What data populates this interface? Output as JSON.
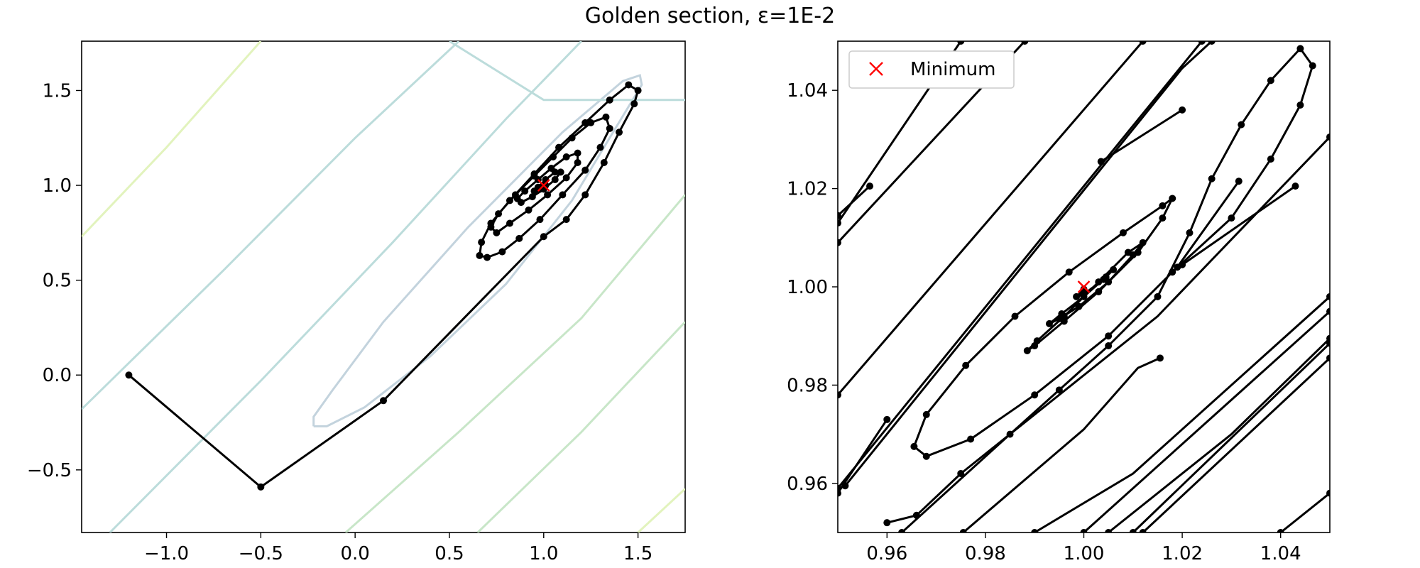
{
  "title": "Golden section, ε=1E-2",
  "legend": {
    "label": "Minimum",
    "marker_color": "#ff0000",
    "placement": "upper-left"
  },
  "colors": {
    "path": "#000000",
    "minimum": "#ff0000",
    "contours": [
      "#c3d3dd",
      "#bcdcdb",
      "#c8e6c8",
      "#e2f3bd"
    ]
  },
  "chart_data": [
    {
      "type": "line",
      "panel": "left",
      "xlim": [
        -1.45,
        1.75
      ],
      "ylim": [
        -0.83,
        1.76
      ],
      "xticks": [
        -1.0,
        -0.5,
        0.0,
        0.5,
        1.0,
        1.5
      ],
      "xtick_labels": [
        "−1.0",
        "−0.5",
        "0.0",
        "0.5",
        "1.0",
        "1.5"
      ],
      "yticks": [
        -0.5,
        0.0,
        0.5,
        1.0,
        1.5
      ],
      "ytick_labels": [
        "−0.5",
        "0.0",
        "0.5",
        "1.0",
        "1.5"
      ],
      "grid": false,
      "contours": [
        {
          "level": 1,
          "points": [
            [
              -0.22,
              -0.27
            ],
            [
              -0.15,
              -0.27
            ],
            [
              0.05,
              -0.17
            ],
            [
              0.4,
              0.1
            ],
            [
              0.8,
              0.48
            ],
            [
              1.15,
              0.92
            ],
            [
              1.38,
              1.3
            ],
            [
              1.52,
              1.53
            ],
            [
              1.51,
              1.58
            ],
            [
              1.42,
              1.55
            ],
            [
              1.1,
              1.28
            ],
            [
              0.6,
              0.78
            ],
            [
              0.15,
              0.28
            ],
            [
              -0.12,
              -0.08
            ],
            [
              -0.22,
              -0.22
            ],
            [
              -0.22,
              -0.27
            ]
          ]
        },
        {
          "level": 2,
          "points": [
            [
              -1.45,
              -0.18
            ],
            [
              -0.7,
              0.55
            ],
            [
              0.0,
              1.25
            ],
            [
              0.55,
              1.76
            ]
          ]
        },
        {
          "level": 2,
          "points": [
            [
              -1.3,
              -0.83
            ],
            [
              -0.5,
              -0.03
            ],
            [
              0.2,
              0.7
            ],
            [
              0.8,
              1.35
            ],
            [
              1.2,
              1.76
            ]
          ]
        },
        {
          "level": 2,
          "points": [
            [
              0.5,
              1.76
            ],
            [
              1.0,
              1.45
            ],
            [
              1.75,
              1.45
            ]
          ]
        },
        {
          "level": 3,
          "points": [
            [
              -0.05,
              -0.83
            ],
            [
              0.55,
              -0.3
            ],
            [
              1.2,
              0.3
            ],
            [
              1.75,
              0.95
            ]
          ]
        },
        {
          "level": 3,
          "points": [
            [
              0.65,
              -0.83
            ],
            [
              1.2,
              -0.3
            ],
            [
              1.75,
              0.28
            ]
          ]
        },
        {
          "level": 4,
          "points": [
            [
              -1.45,
              0.73
            ],
            [
              -1.0,
              1.2
            ],
            [
              -0.5,
              1.76
            ]
          ]
        },
        {
          "level": 4,
          "points": [
            [
              1.5,
              -0.83
            ],
            [
              1.75,
              -0.6
            ]
          ]
        }
      ],
      "path": [
        [
          -1.2,
          0.0
        ],
        [
          -0.5,
          -0.59
        ],
        [
          0.15,
          -0.135
        ],
        [
          1.0,
          0.73
        ],
        [
          1.12,
          0.82
        ],
        [
          1.22,
          0.95
        ],
        [
          1.32,
          1.12
        ],
        [
          1.4,
          1.28
        ],
        [
          1.48,
          1.43
        ],
        [
          1.5,
          1.5
        ],
        [
          1.45,
          1.53
        ],
        [
          1.35,
          1.45
        ],
        [
          1.22,
          1.33
        ],
        [
          1.08,
          1.2
        ],
        [
          0.95,
          1.06
        ],
        [
          0.82,
          0.92
        ],
        [
          0.72,
          0.8
        ],
        [
          0.67,
          0.7
        ],
        [
          0.66,
          0.63
        ],
        [
          0.7,
          0.62
        ],
        [
          0.78,
          0.65
        ],
        [
          0.87,
          0.72
        ],
        [
          0.98,
          0.82
        ],
        [
          1.1,
          0.95
        ],
        [
          1.22,
          1.08
        ],
        [
          1.3,
          1.2
        ],
        [
          1.35,
          1.3
        ],
        [
          1.33,
          1.36
        ],
        [
          1.25,
          1.33
        ],
        [
          1.15,
          1.25
        ],
        [
          1.05,
          1.15
        ],
        [
          0.95,
          1.05
        ],
        [
          0.85,
          0.95
        ],
        [
          0.76,
          0.85
        ],
        [
          0.72,
          0.78
        ],
        [
          0.75,
          0.75
        ],
        [
          0.82,
          0.8
        ],
        [
          0.92,
          0.87
        ],
        [
          1.02,
          0.95
        ],
        [
          1.12,
          1.04
        ],
        [
          1.18,
          1.12
        ],
        [
          1.18,
          1.17
        ],
        [
          1.12,
          1.15
        ],
        [
          1.04,
          1.09
        ],
        [
          0.97,
          1.03
        ],
        [
          0.9,
          0.97
        ],
        [
          0.86,
          0.93
        ],
        [
          0.88,
          0.91
        ],
        [
          0.94,
          0.94
        ],
        [
          1.0,
          0.98
        ],
        [
          1.06,
          1.03
        ],
        [
          1.09,
          1.07
        ],
        [
          1.06,
          1.07
        ],
        [
          1.01,
          1.03
        ],
        [
          0.97,
          0.99
        ],
        [
          0.95,
          0.97
        ],
        [
          0.98,
          0.98
        ],
        [
          1.01,
          1.0
        ],
        [
          1.0,
          1.0
        ]
      ],
      "minimum": [
        1.0,
        1.0
      ]
    },
    {
      "type": "line",
      "panel": "right",
      "xlim": [
        0.95,
        1.05
      ],
      "ylim": [
        0.95,
        1.05
      ],
      "xticks": [
        0.96,
        0.98,
        1.0,
        1.02,
        1.04
      ],
      "xtick_labels": [
        "0.96",
        "0.98",
        "1.00",
        "1.02",
        "1.04"
      ],
      "yticks": [
        0.96,
        0.98,
        1.0,
        1.02,
        1.04
      ],
      "ytick_labels": [
        "0.96",
        "0.98",
        "1.00",
        "1.02",
        "1.04"
      ],
      "grid": false,
      "segments": [
        [
          [
            0.95,
            1.013
          ],
          [
            0.975,
            1.05
          ]
        ],
        [
          [
            0.95,
            1.009
          ],
          [
            0.988,
            1.05
          ]
        ],
        [
          [
            0.95,
            1.0145
          ],
          [
            0.9565,
            1.0205
          ]
        ],
        [
          [
            0.95,
            0.978
          ],
          [
            1.012,
            1.05
          ]
        ],
        [
          [
            0.95,
            0.959
          ],
          [
            1.024,
            1.05
          ]
        ],
        [
          [
            0.95,
            0.958
          ],
          [
            0.96,
            0.973
          ]
        ],
        [
          [
            0.9515,
            0.9595
          ],
          [
            1.02,
            1.0445
          ],
          [
            1.026,
            1.05
          ]
        ],
        [
          [
            0.963,
            0.95
          ],
          [
            0.985,
            0.97
          ],
          [
            1.015,
            0.994
          ],
          [
            1.05,
            1.0305
          ]
        ],
        [
          [
            0.99,
            0.95
          ],
          [
            1.01,
            0.962
          ],
          [
            1.05,
            0.998
          ]
        ],
        [
          [
            1.005,
            0.95
          ],
          [
            1.03,
            0.97
          ],
          [
            1.05,
            0.9895
          ]
        ],
        [
          [
            1.0,
            0.95
          ],
          [
            1.05,
            0.995
          ]
        ],
        [
          [
            1.01,
            0.95
          ],
          [
            1.05,
            0.9885
          ]
        ],
        [
          [
            1.012,
            0.95
          ],
          [
            1.05,
            0.9855
          ]
        ],
        [
          [
            0.9755,
            0.95
          ],
          [
            1.0,
            0.971
          ],
          [
            1.011,
            0.9835
          ],
          [
            1.0155,
            0.9855
          ]
        ],
        [
          [
            1.04,
            0.95
          ],
          [
            1.05,
            0.958
          ]
        ],
        [
          [
            1.043,
            1.0205
          ],
          [
            1.02,
            1.0045
          ]
        ],
        [
          [
            1.0315,
            1.0215
          ],
          [
            1.019,
            1.004
          ]
        ],
        [
          [
            1.0035,
            1.0255
          ],
          [
            1.02,
            1.036
          ]
        ]
      ],
      "path": [
        [
          0.96,
          0.952
        ],
        [
          0.966,
          0.9535
        ],
        [
          0.975,
          0.962
        ],
        [
          0.985,
          0.97
        ],
        [
          0.995,
          0.979
        ],
        [
          1.005,
          0.988
        ],
        [
          1.015,
          0.998
        ],
        [
          1.0215,
          1.011
        ],
        [
          1.026,
          1.022
        ],
        [
          1.032,
          1.033
        ],
        [
          1.038,
          1.042
        ],
        [
          1.044,
          1.0485
        ],
        [
          1.0465,
          1.045
        ],
        [
          1.044,
          1.037
        ],
        [
          1.038,
          1.026
        ],
        [
          1.03,
          1.014
        ],
        [
          1.018,
          1.003
        ],
        [
          1.005,
          0.99
        ],
        [
          0.99,
          0.978
        ],
        [
          0.977,
          0.969
        ],
        [
          0.968,
          0.9655
        ],
        [
          0.9655,
          0.9675
        ],
        [
          0.968,
          0.974
        ],
        [
          0.976,
          0.984
        ],
        [
          0.986,
          0.994
        ],
        [
          0.997,
          1.003
        ],
        [
          1.008,
          1.011
        ],
        [
          1.016,
          1.0165
        ],
        [
          1.018,
          1.018
        ],
        [
          1.016,
          1.014
        ],
        [
          1.011,
          1.007
        ],
        [
          1.003,
          0.999
        ],
        [
          0.996,
          0.993
        ],
        [
          0.99,
          0.988
        ],
        [
          0.9885,
          0.987
        ],
        [
          0.9905,
          0.989
        ],
        [
          0.996,
          0.994
        ],
        [
          1.003,
          1.001
        ],
        [
          1.009,
          1.007
        ],
        [
          1.012,
          1.009
        ],
        [
          1.01,
          1.0065
        ],
        [
          1.005,
          1.001
        ],
        [
          0.999,
          0.996
        ],
        [
          0.995,
          0.9935
        ],
        [
          0.993,
          0.9925
        ],
        [
          0.9955,
          0.9945
        ],
        [
          1.0,
          0.998
        ],
        [
          1.0045,
          1.002
        ],
        [
          1.006,
          1.0035
        ],
        [
          1.004,
          1.0015
        ],
        [
          1.0,
          0.9985
        ],
        [
          0.9985,
          0.998
        ],
        [
          1.0,
          0.9995
        ]
      ],
      "minimum": [
        1.0,
        1.0
      ]
    }
  ]
}
